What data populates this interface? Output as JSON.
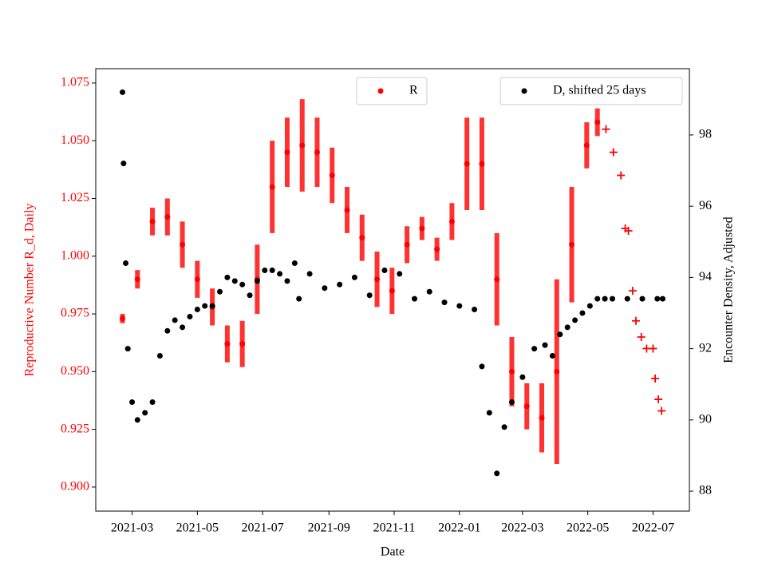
{
  "chart_data": {
    "type": "scatter",
    "xlabel": "Date",
    "ylabel": "Reproductive Number R_d, Daily",
    "y2label": "Encounter Density, Adjusted",
    "xlim": [
      "2021-01-26",
      "2022-08-04"
    ],
    "xticks": [
      {
        "value": "2021-03-01",
        "label": "2021-03"
      },
      {
        "value": "2021-05-01",
        "label": "2021-05"
      },
      {
        "value": "2021-07-01",
        "label": "2021-07"
      },
      {
        "value": "2021-09-01",
        "label": "2021-09"
      },
      {
        "value": "2021-11-01",
        "label": "2021-11"
      },
      {
        "value": "2022-01-01",
        "label": "2022-01"
      },
      {
        "value": "2022-03-01",
        "label": "2022-03"
      },
      {
        "value": "2022-05-01",
        "label": "2022-05"
      },
      {
        "value": "2022-07-01",
        "label": "2022-07"
      }
    ],
    "ylim": [
      0.8896,
      1.0812
    ],
    "yticks": [
      {
        "value": 0.9,
        "label": "0.900"
      },
      {
        "value": 0.925,
        "label": "0.925"
      },
      {
        "value": 0.95,
        "label": "0.950"
      },
      {
        "value": 0.975,
        "label": "0.975"
      },
      {
        "value": 1.0,
        "label": "1.000"
      },
      {
        "value": 1.025,
        "label": "1.025"
      },
      {
        "value": 1.05,
        "label": "1.050"
      },
      {
        "value": 1.075,
        "label": "1.075"
      }
    ],
    "y2lim": [
      87.44,
      99.86
    ],
    "y2ticks": [
      88,
      90,
      92,
      94,
      96,
      98
    ],
    "series": [
      {
        "name": "R",
        "color": "#ff0000",
        "marker": "dot",
        "x": [
          "2021-02-20",
          "2021-03-06",
          "2021-03-20",
          "2021-04-03",
          "2021-04-17",
          "2021-05-01",
          "2021-05-15",
          "2021-05-29",
          "2021-06-12",
          "2021-06-26",
          "2021-07-10",
          "2021-07-24",
          "2021-08-07",
          "2021-08-21",
          "2021-09-04",
          "2021-09-18",
          "2021-10-02",
          "2021-10-16",
          "2021-10-30",
          "2021-11-13",
          "2021-11-27",
          "2021-12-11",
          "2021-12-25",
          "2022-01-08",
          "2022-01-22",
          "2022-02-05",
          "2022-02-19",
          "2022-03-05",
          "2022-03-19",
          "2022-04-02",
          "2022-04-16",
          "2022-04-30",
          "2022-05-10"
        ],
        "values": [
          0.973,
          0.99,
          1.015,
          1.017,
          1.005,
          0.99,
          0.978,
          0.962,
          0.962,
          0.99,
          1.03,
          1.045,
          1.048,
          1.045,
          1.035,
          1.02,
          1.008,
          0.99,
          0.985,
          1.005,
          1.012,
          1.003,
          1.015,
          1.04,
          1.04,
          0.99,
          0.95,
          0.935,
          0.93,
          0.95,
          1.005,
          1.048,
          1.058
        ],
        "errors": [
          0.002,
          0.004,
          0.006,
          0.008,
          0.01,
          0.008,
          0.008,
          0.008,
          0.01,
          0.015,
          0.02,
          0.015,
          0.02,
          0.015,
          0.012,
          0.01,
          0.01,
          0.012,
          0.01,
          0.008,
          0.005,
          0.005,
          0.008,
          0.02,
          0.02,
          0.02,
          0.015,
          0.01,
          0.015,
          0.04,
          0.025,
          0.01,
          0.006
        ]
      },
      {
        "color": "#ff0000",
        "marker": "plus",
        "x": [
          "2022-05-18",
          "2022-05-25",
          "2022-06-01",
          "2022-06-05",
          "2022-06-08",
          "2022-06-12",
          "2022-06-15",
          "2022-06-20",
          "2022-06-25",
          "2022-07-01",
          "2022-07-03",
          "2022-07-06",
          "2022-07-09"
        ],
        "values": [
          1.055,
          1.045,
          1.035,
          1.012,
          1.011,
          0.985,
          0.972,
          0.965,
          0.96,
          0.96,
          0.947,
          0.938,
          0.933
        ]
      },
      {
        "name": "D, shifted 25 days",
        "color": "#000000",
        "marker": "dot",
        "axis": "y2",
        "x": [
          "2021-02-20",
          "2021-02-21",
          "2021-02-23",
          "2021-02-25",
          "2021-03-01",
          "2021-03-06",
          "2021-03-13",
          "2021-03-20",
          "2021-03-27",
          "2021-04-03",
          "2021-04-10",
          "2021-04-17",
          "2021-04-24",
          "2021-05-01",
          "2021-05-08",
          "2021-05-15",
          "2021-05-22",
          "2021-05-29",
          "2021-06-05",
          "2021-06-12",
          "2021-06-19",
          "2021-06-26",
          "2021-07-03",
          "2021-07-10",
          "2021-07-17",
          "2021-07-24",
          "2021-07-31",
          "2021-08-04",
          "2021-08-14",
          "2021-08-28",
          "2021-09-11",
          "2021-09-25",
          "2021-10-09",
          "2021-10-23",
          "2021-11-06",
          "2021-11-20",
          "2021-12-04",
          "2021-12-18",
          "2022-01-01",
          "2022-01-15",
          "2022-01-22",
          "2022-01-29",
          "2022-02-05",
          "2022-02-12",
          "2022-02-19",
          "2022-03-01",
          "2022-03-12",
          "2022-03-22",
          "2022-03-29",
          "2022-04-05",
          "2022-04-12",
          "2022-04-19",
          "2022-04-26",
          "2022-05-03",
          "2022-05-10",
          "2022-05-17",
          "2022-05-24",
          "2022-06-07",
          "2022-06-21",
          "2022-07-05",
          "2022-07-10"
        ],
        "values": [
          99.2,
          97.2,
          94.4,
          92.0,
          90.5,
          90.0,
          90.2,
          90.5,
          91.8,
          92.5,
          92.8,
          92.6,
          92.9,
          93.1,
          93.2,
          93.2,
          93.6,
          94.0,
          93.9,
          93.8,
          93.5,
          93.9,
          94.2,
          94.2,
          94.1,
          93.9,
          94.4,
          93.4,
          94.1,
          93.7,
          93.8,
          94.0,
          93.5,
          94.2,
          94.1,
          93.4,
          93.6,
          93.3,
          93.2,
          93.1,
          91.5,
          90.2,
          88.5,
          89.8,
          90.5,
          91.2,
          92.0,
          92.1,
          91.8,
          92.4,
          92.6,
          92.8,
          93.0,
          93.2,
          93.4,
          93.4,
          93.4,
          93.4,
          93.4,
          93.4,
          93.4
        ]
      }
    ]
  }
}
